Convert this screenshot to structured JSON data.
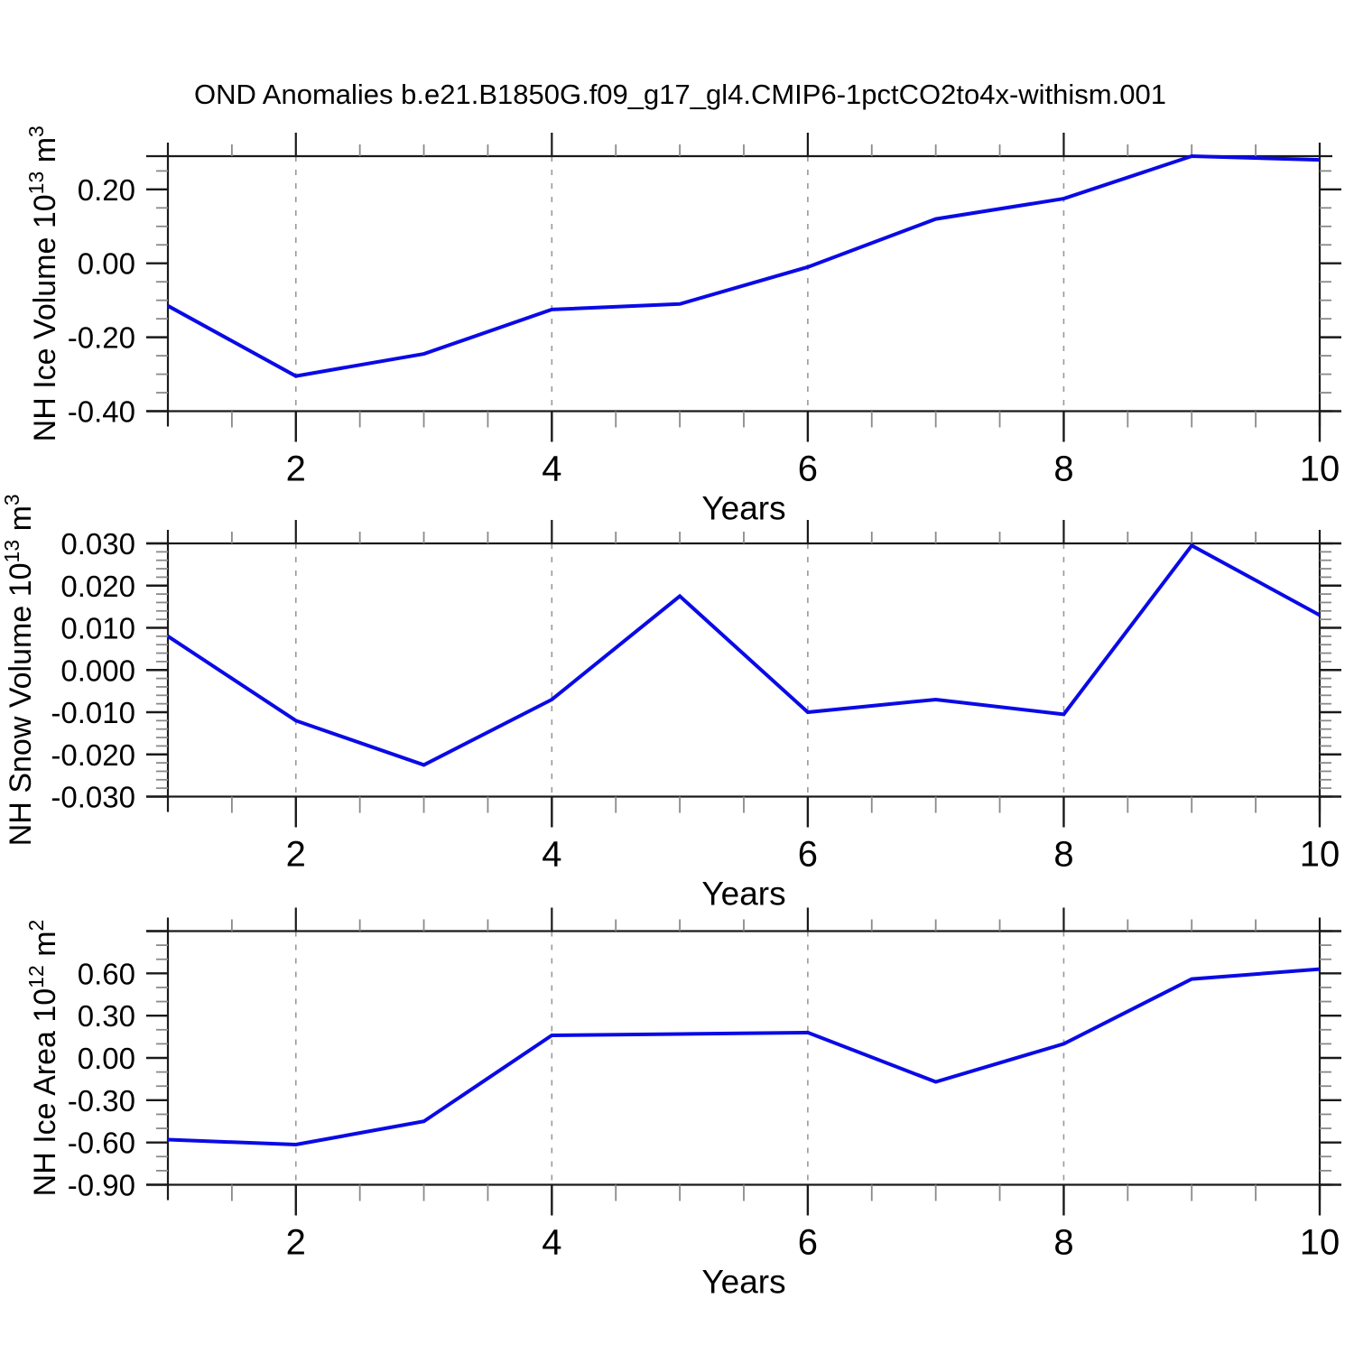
{
  "title": "OND Anomalies b.e21.B1850G.f09_g17_gl4.CMIP6-1pctCO2to4x-withism.001",
  "colors": {
    "line": "#0a0ae6",
    "grid": "#999999",
    "axis": "#1a1a1a",
    "minor_tick": "#8a8a8a",
    "background": "#ffffff",
    "text": "#000000"
  },
  "x_axis": {
    "label": "Years",
    "range": [
      1,
      10
    ],
    "ticks": [
      2,
      4,
      6,
      8,
      10
    ],
    "tick_labels": [
      "2",
      "4",
      "6",
      "8",
      "10"
    ],
    "minor_step": 0.5,
    "grid_at": [
      2,
      4,
      6,
      8
    ]
  },
  "chart_data": [
    {
      "type": "line",
      "id": "nh-ice-volume",
      "ylabel_text": "NH Ice Volume 10^13 m^3",
      "ylabel_segments": [
        {
          "t": "NH Ice Volume 10"
        },
        {
          "t": "13",
          "sup": true
        },
        {
          "t": " m"
        },
        {
          "t": "3",
          "sup": true
        }
      ],
      "ylim": [
        -0.4,
        0.29
      ],
      "ytick_values": [
        0.2,
        0.0,
        -0.2,
        -0.4
      ],
      "ytick_labels": [
        "0.20",
        "0.00",
        "-0.20",
        "-0.40"
      ],
      "y_minor_step": 0.05,
      "x": [
        1,
        2,
        3,
        4,
        5,
        6,
        7,
        8,
        9,
        10
      ],
      "values": [
        -0.115,
        -0.305,
        -0.245,
        -0.125,
        -0.11,
        -0.01,
        0.12,
        0.175,
        0.29,
        0.28
      ],
      "xlabel": "Years",
      "grid": "x-dashed",
      "legend": "none"
    },
    {
      "type": "line",
      "id": "nh-snow-volume",
      "ylabel_text": "NH Snow Volume 10^13 m^3",
      "ylabel_segments": [
        {
          "t": "NH Snow Volume 10"
        },
        {
          "t": "13",
          "sup": true
        },
        {
          "t": " m"
        },
        {
          "t": "3",
          "sup": true
        }
      ],
      "ylim": [
        -0.03,
        0.03
      ],
      "ytick_values": [
        0.03,
        0.02,
        0.01,
        0.0,
        -0.01,
        -0.02,
        -0.03
      ],
      "ytick_labels": [
        "0.030",
        "0.020",
        "0.010",
        "0.000",
        "-0.010",
        "-0.020",
        "-0.030"
      ],
      "y_minor_step": 0.002,
      "x": [
        1,
        2,
        3,
        4,
        5,
        6,
        7,
        8,
        9,
        10
      ],
      "values": [
        0.008,
        -0.012,
        -0.0225,
        -0.007,
        0.0175,
        -0.01,
        -0.007,
        -0.0105,
        0.0295,
        0.013
      ],
      "xlabel": "Years",
      "grid": "x-dashed",
      "legend": "none"
    },
    {
      "type": "line",
      "id": "nh-ice-area",
      "ylabel_text": "NH Ice Area 10^12 m^2",
      "ylabel_segments": [
        {
          "t": "NH Ice Area 10"
        },
        {
          "t": "12",
          "sup": true
        },
        {
          "t": " m"
        },
        {
          "t": "2",
          "sup": true
        }
      ],
      "ylim": [
        -0.9,
        0.9
      ],
      "ytick_values": [
        0.9,
        0.6,
        0.3,
        0.0,
        -0.3,
        -0.6,
        -0.9
      ],
      "ytick_labels": [
        "",
        "0.60",
        "0.30",
        "0.00",
        "-0.30",
        "-0.60",
        "-0.90"
      ],
      "y_minor_step": 0.1,
      "x": [
        1,
        2,
        3,
        4,
        5,
        6,
        7,
        8,
        9,
        10
      ],
      "values": [
        -0.58,
        -0.615,
        -0.45,
        0.16,
        0.17,
        0.18,
        -0.17,
        0.1,
        0.56,
        0.63
      ],
      "xlabel": "Years",
      "grid": "x-dashed",
      "legend": "none"
    }
  ]
}
